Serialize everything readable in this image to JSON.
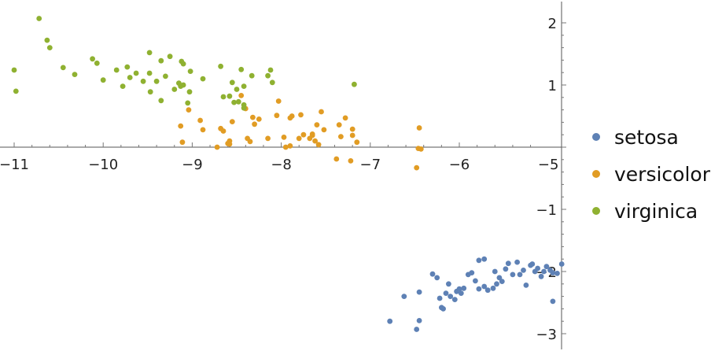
{
  "chart_data": {
    "type": "scatter",
    "title": "",
    "xlabel": "",
    "ylabel": "",
    "xlim": [
      -11.1,
      -4.9
    ],
    "ylim": [
      -3.15,
      2.15
    ],
    "x_ticks": [
      -11,
      -10,
      -9,
      -8,
      -7,
      -6,
      -5
    ],
    "y_ticks": [
      -3,
      -2,
      -1,
      1,
      2
    ],
    "x_tick_labels": [
      "−11",
      "−10",
      "−9",
      "−8",
      "−7",
      "−6",
      "−5"
    ],
    "y_tick_labels": [
      "−3",
      "−2",
      "−1",
      "1",
      "2"
    ],
    "grid": false,
    "legend_position": "right",
    "series": [
      {
        "name": "setosa",
        "color": "#5E81B5",
        "points": [
          [
            -6.78,
            -2.8
          ],
          [
            -6.48,
            -2.93
          ],
          [
            -6.45,
            -2.79
          ],
          [
            -6.45,
            -2.33
          ],
          [
            -6.62,
            -2.4
          ],
          [
            -6.3,
            -2.04
          ],
          [
            -6.25,
            -2.1
          ],
          [
            -6.2,
            -2.58
          ],
          [
            -6.18,
            -2.6
          ],
          [
            -6.22,
            -2.43
          ],
          [
            -6.15,
            -2.35
          ],
          [
            -6.1,
            -2.4
          ],
          [
            -6.12,
            -2.2
          ],
          [
            -6.05,
            -2.45
          ],
          [
            -6.03,
            -2.32
          ],
          [
            -6.0,
            -2.28
          ],
          [
            -5.98,
            -2.35
          ],
          [
            -5.95,
            -2.27
          ],
          [
            -5.9,
            -2.05
          ],
          [
            -5.86,
            -2.02
          ],
          [
            -5.82,
            -2.15
          ],
          [
            -5.78,
            -2.28
          ],
          [
            -5.72,
            -2.24
          ],
          [
            -5.68,
            -2.3
          ],
          [
            -5.62,
            -2.27
          ],
          [
            -5.58,
            -2.2
          ],
          [
            -5.55,
            -2.1
          ],
          [
            -5.52,
            -2.16
          ],
          [
            -5.48,
            -1.96
          ],
          [
            -5.45,
            -1.87
          ],
          [
            -5.4,
            -2.05
          ],
          [
            -5.35,
            -1.85
          ],
          [
            -5.32,
            -2.05
          ],
          [
            -5.28,
            -1.98
          ],
          [
            -5.25,
            -2.22
          ],
          [
            -5.2,
            -1.9
          ],
          [
            -5.18,
            -1.88
          ],
          [
            -5.15,
            -2.0
          ],
          [
            -5.12,
            -1.95
          ],
          [
            -5.08,
            -2.08
          ],
          [
            -5.05,
            -2.0
          ],
          [
            -5.02,
            -1.92
          ],
          [
            -4.98,
            -1.98
          ],
          [
            -4.95,
            -2.02
          ],
          [
            -4.9,
            -2.03
          ],
          [
            -4.85,
            -1.88
          ],
          [
            -4.95,
            -2.48
          ],
          [
            -5.78,
            -1.82
          ],
          [
            -5.72,
            -1.8
          ],
          [
            -5.6,
            -2.0
          ]
        ]
      },
      {
        "name": "versicolor",
        "color": "#E19C24",
        "points": [
          [
            -9.13,
            0.34
          ],
          [
            -9.11,
            0.08
          ],
          [
            -9.04,
            0.6
          ],
          [
            -8.91,
            0.43
          ],
          [
            -8.88,
            0.28
          ],
          [
            -8.72,
            -0.0
          ],
          [
            -8.68,
            0.3
          ],
          [
            -8.65,
            0.26
          ],
          [
            -8.6,
            0.06
          ],
          [
            -8.58,
            0.1
          ],
          [
            -8.55,
            0.41
          ],
          [
            -8.45,
            0.83
          ],
          [
            -8.4,
            0.62
          ],
          [
            -8.38,
            0.14
          ],
          [
            -8.35,
            0.09
          ],
          [
            -8.32,
            0.48
          ],
          [
            -8.3,
            0.37
          ],
          [
            -8.25,
            0.45
          ],
          [
            -8.15,
            0.14
          ],
          [
            -8.05,
            0.51
          ],
          [
            -8.03,
            0.74
          ],
          [
            -7.97,
            0.16
          ],
          [
            -7.9,
            0.47
          ],
          [
            -7.88,
            0.5
          ],
          [
            -7.9,
            0.02
          ],
          [
            -7.8,
            0.14
          ],
          [
            -7.78,
            0.52
          ],
          [
            -7.75,
            0.2
          ],
          [
            -7.68,
            0.14
          ],
          [
            -7.65,
            0.21
          ],
          [
            -7.62,
            0.1
          ],
          [
            -7.6,
            0.36
          ],
          [
            -7.58,
            0.04
          ],
          [
            -7.55,
            0.57
          ],
          [
            -7.52,
            0.28
          ],
          [
            -7.35,
            0.36
          ],
          [
            -7.33,
            0.17
          ],
          [
            -7.28,
            0.47
          ],
          [
            -7.2,
            0.19
          ],
          [
            -7.2,
            0.29
          ],
          [
            -7.15,
            0.08
          ],
          [
            -7.38,
            -0.19
          ],
          [
            -7.22,
            -0.22
          ],
          [
            -6.48,
            -0.33
          ],
          [
            -6.46,
            -0.02
          ],
          [
            -6.45,
            0.31
          ],
          [
            -6.43,
            -0.03
          ],
          [
            -7.65,
            0.19
          ],
          [
            -7.95,
            0.0
          ],
          [
            -8.58,
            0.05
          ]
        ]
      },
      {
        "name": "virginica",
        "color": "#8FB131",
        "points": [
          [
            -11.0,
            1.24
          ],
          [
            -10.98,
            0.9
          ],
          [
            -10.72,
            2.07
          ],
          [
            -10.63,
            1.72
          ],
          [
            -10.6,
            1.6
          ],
          [
            -10.45,
            1.28
          ],
          [
            -10.32,
            1.17
          ],
          [
            -10.12,
            1.42
          ],
          [
            -10.07,
            1.35
          ],
          [
            -10.0,
            1.08
          ],
          [
            -9.85,
            1.24
          ],
          [
            -9.78,
            0.98
          ],
          [
            -9.73,
            1.29
          ],
          [
            -9.7,
            1.12
          ],
          [
            -9.63,
            1.19
          ],
          [
            -9.55,
            1.06
          ],
          [
            -9.48,
            1.52
          ],
          [
            -9.48,
            1.19
          ],
          [
            -9.47,
            0.89
          ],
          [
            -9.4,
            1.06
          ],
          [
            -9.35,
            1.39
          ],
          [
            -9.35,
            0.75
          ],
          [
            -9.3,
            1.14
          ],
          [
            -9.25,
            1.46
          ],
          [
            -9.2,
            0.93
          ],
          [
            -9.15,
            1.03
          ],
          [
            -9.13,
            0.98
          ],
          [
            -9.12,
            1.38
          ],
          [
            -9.1,
            1.34
          ],
          [
            -9.1,
            1.0
          ],
          [
            -9.05,
            0.71
          ],
          [
            -9.03,
            0.89
          ],
          [
            -9.02,
            1.22
          ],
          [
            -8.88,
            1.1
          ],
          [
            -8.68,
            1.3
          ],
          [
            -8.65,
            0.81
          ],
          [
            -8.58,
            0.82
          ],
          [
            -8.55,
            1.04
          ],
          [
            -8.53,
            0.72
          ],
          [
            -8.5,
            0.93
          ],
          [
            -8.48,
            0.73
          ],
          [
            -8.45,
            1.25
          ],
          [
            -8.42,
            0.98
          ],
          [
            -8.42,
            0.68
          ],
          [
            -8.33,
            1.15
          ],
          [
            -8.15,
            1.15
          ],
          [
            -8.12,
            1.24
          ],
          [
            -8.1,
            1.04
          ],
          [
            -7.18,
            1.01
          ],
          [
            -8.42,
            0.63
          ]
        ]
      }
    ]
  }
}
